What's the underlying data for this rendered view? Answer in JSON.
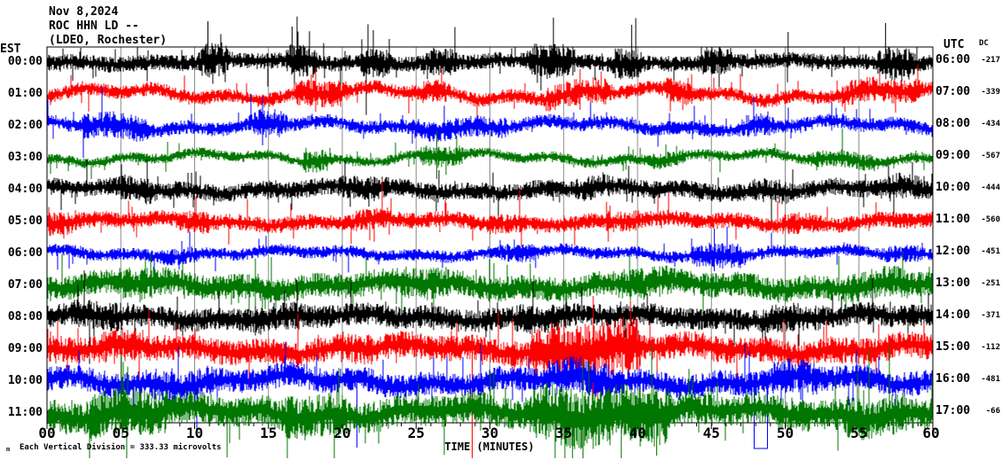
{
  "header": {
    "date": "Nov 8,2024",
    "station": "ROC HHN LD --",
    "network": "(LDEO, Rochester)"
  },
  "left_axis": {
    "label": "EST"
  },
  "right_axis": {
    "label": "UTC",
    "dc_label": "DC"
  },
  "x_axis": {
    "label": "TIME (MINUTES)",
    "ticks": [
      "00",
      "05",
      "10",
      "15",
      "20",
      "25",
      "30",
      "35",
      "40",
      "45",
      "50",
      "55",
      "60"
    ]
  },
  "footer": {
    "logo_glyph": "m",
    "scale_note": "Each Vertical Division = 333.33 microvolts"
  },
  "colors": {
    "black": "#000000",
    "red": "#ff0000",
    "blue": "#0000ff",
    "green": "#007700",
    "grid": "#8c8c8c",
    "frame": "#000000"
  },
  "chart_data": {
    "type": "line",
    "subtype": "seismogram-helicorder",
    "title": "ROC HHN LD -- (LDEO, Rochester) Nov 8,2024",
    "xlabel": "TIME (MINUTES)",
    "x_range": [
      0,
      60
    ],
    "row_duration_minutes": 60,
    "row_spacing_hours": 1,
    "grid": "vertical every 5 minutes",
    "scale_note": "Each Vertical Division = 333.33 microvolts",
    "rows": [
      {
        "est": "00:00",
        "utc": "06:00",
        "dc": -217,
        "color": "#000000",
        "amp": 9,
        "wander": 2,
        "bursts": [
          [
            10.5,
            1.5,
            2.2
          ],
          [
            16.5,
            1.5,
            2.1
          ],
          [
            21.5,
            1.5,
            1.9
          ],
          [
            26,
            1.5,
            1.8
          ],
          [
            33,
            2.5,
            2.2
          ],
          [
            38.5,
            1.5,
            2.0
          ],
          [
            44.5,
            1.5,
            1.9
          ],
          [
            56.5,
            2,
            2.1
          ]
        ],
        "spikes": [
          [
            10.9,
            46,
            10
          ],
          [
            16.6,
            40,
            8
          ],
          [
            22.1,
            36,
            8
          ],
          [
            34.3,
            50,
            10
          ],
          [
            39.6,
            42,
            8
          ],
          [
            50.2,
            34,
            6
          ],
          [
            56.8,
            44,
            8
          ]
        ]
      },
      {
        "est": "01:00",
        "utc": "07:00",
        "dc": -339,
        "color": "#ff0000",
        "amp": 8,
        "wander": 5,
        "bursts": [
          [
            17,
            3,
            1.9
          ],
          [
            25,
            2,
            1.6
          ],
          [
            34,
            4,
            1.9
          ],
          [
            42,
            1.5,
            1.7
          ],
          [
            54,
            5,
            1.8
          ]
        ],
        "spikes": [
          [
            18.2,
            30,
            20
          ],
          [
            36.1,
            28,
            18
          ]
        ]
      },
      {
        "est": "02:00",
        "utc": "08:00",
        "dc": -434,
        "color": "#0000ff",
        "amp": 8,
        "wander": 4,
        "bursts": [
          [
            2.5,
            4,
            1.9
          ],
          [
            14,
            2,
            1.9
          ],
          [
            25,
            6,
            1.5
          ],
          [
            47,
            2,
            1.6
          ]
        ],
        "spikes": [
          [
            14.6,
            34,
            22
          ]
        ]
      },
      {
        "est": "03:00",
        "utc": "09:00",
        "dc": -567,
        "color": "#007700",
        "amp": 6,
        "wander": 4,
        "bursts": [
          [
            17.5,
            1.5,
            2.1
          ],
          [
            25.5,
            2.5,
            2.0
          ],
          [
            41,
            2,
            1.6
          ],
          [
            52,
            4,
            1.7
          ]
        ],
        "spikes": [
          [
            26.4,
            30,
            24
          ]
        ]
      },
      {
        "est": "04:00",
        "utc": "10:00",
        "dc": -444,
        "color": "#000000",
        "amp": 10,
        "wander": 3,
        "bursts": [
          [
            5,
            2,
            1.5
          ],
          [
            20,
            3,
            1.4
          ],
          [
            36,
            2,
            1.4
          ],
          [
            48,
            2,
            1.4
          ],
          [
            57,
            2,
            1.5
          ]
        ],
        "spikes": []
      },
      {
        "est": "05:00",
        "utc": "11:00",
        "dc": -560,
        "color": "#ff0000",
        "amp": 9,
        "wander": 3,
        "bursts": [
          [
            0,
            2,
            1.5
          ],
          [
            9,
            2,
            1.5
          ],
          [
            21,
            2,
            1.4
          ],
          [
            30,
            2,
            1.3
          ],
          [
            38,
            2,
            1.4
          ],
          [
            50,
            2,
            1.4
          ]
        ],
        "spikes": []
      },
      {
        "est": "06:00",
        "utc": "12:00",
        "dc": -451,
        "color": "#0000ff",
        "amp": 7,
        "wander": 3,
        "bursts": [
          [
            8,
            2,
            1.4
          ],
          [
            31,
            2,
            1.5
          ],
          [
            44,
            3,
            2.1
          ],
          [
            57,
            2,
            1.4
          ]
        ],
        "spikes": [
          [
            45.2,
            28,
            20
          ]
        ]
      },
      {
        "est": "07:00",
        "utc": "13:00",
        "dc": -251,
        "color": "#007700",
        "amp": 14,
        "wander": 4,
        "bursts": [
          [
            5,
            3,
            1.3
          ],
          [
            24,
            3,
            1.3
          ],
          [
            39,
            3,
            1.3
          ],
          [
            54,
            4,
            1.3
          ]
        ],
        "spikes": []
      },
      {
        "est": "08:00",
        "utc": "14:00",
        "dc": -371,
        "color": "#000000",
        "amp": 13,
        "wander": 3,
        "bursts": [
          [
            2,
            3,
            1.3
          ],
          [
            14,
            3,
            1.3
          ],
          [
            32,
            3,
            1.3
          ],
          [
            49,
            3,
            1.25
          ]
        ],
        "spikes": []
      },
      {
        "est": "09:00",
        "utc": "15:00",
        "dc": -112,
        "color": "#ff0000",
        "amp": 15,
        "wander": 4,
        "bursts": [
          [
            33,
            7,
            2.2
          ],
          [
            4,
            2,
            1.3
          ],
          [
            20,
            2,
            1.2
          ]
        ],
        "spikes": [
          [
            28.8,
            15,
            130
          ],
          [
            37.0,
            60,
            55
          ]
        ]
      },
      {
        "est": "10:00",
        "utc": "16:00",
        "dc": -481,
        "color": "#0000ff",
        "amp": 14,
        "wander": 5,
        "bursts": [
          [
            7,
            4,
            1.3
          ],
          [
            34,
            4,
            1.5
          ],
          [
            49,
            3,
            1.4
          ]
        ],
        "spikes": [
          [
            21.0,
            0,
            75
          ]
        ],
        "dropouts": [
          [
            47.9,
            0.9,
            76
          ]
        ]
      },
      {
        "est": "11:00",
        "utc": "17:00",
        "dc": -66,
        "color": "#007700",
        "amp": 18,
        "wander": 5,
        "bursts": [
          [
            3,
            5,
            1.5
          ],
          [
            16,
            4,
            1.4
          ],
          [
            33,
            9,
            1.9
          ],
          [
            54,
            4,
            1.3
          ]
        ],
        "spikes": [
          [
            5.4,
            0,
            58
          ],
          [
            12.2,
            0,
            50
          ],
          [
            35.6,
            0,
            62
          ],
          [
            36.3,
            0,
            58
          ],
          [
            38.9,
            0,
            52
          ],
          [
            41.3,
            0,
            48
          ]
        ]
      }
    ]
  }
}
